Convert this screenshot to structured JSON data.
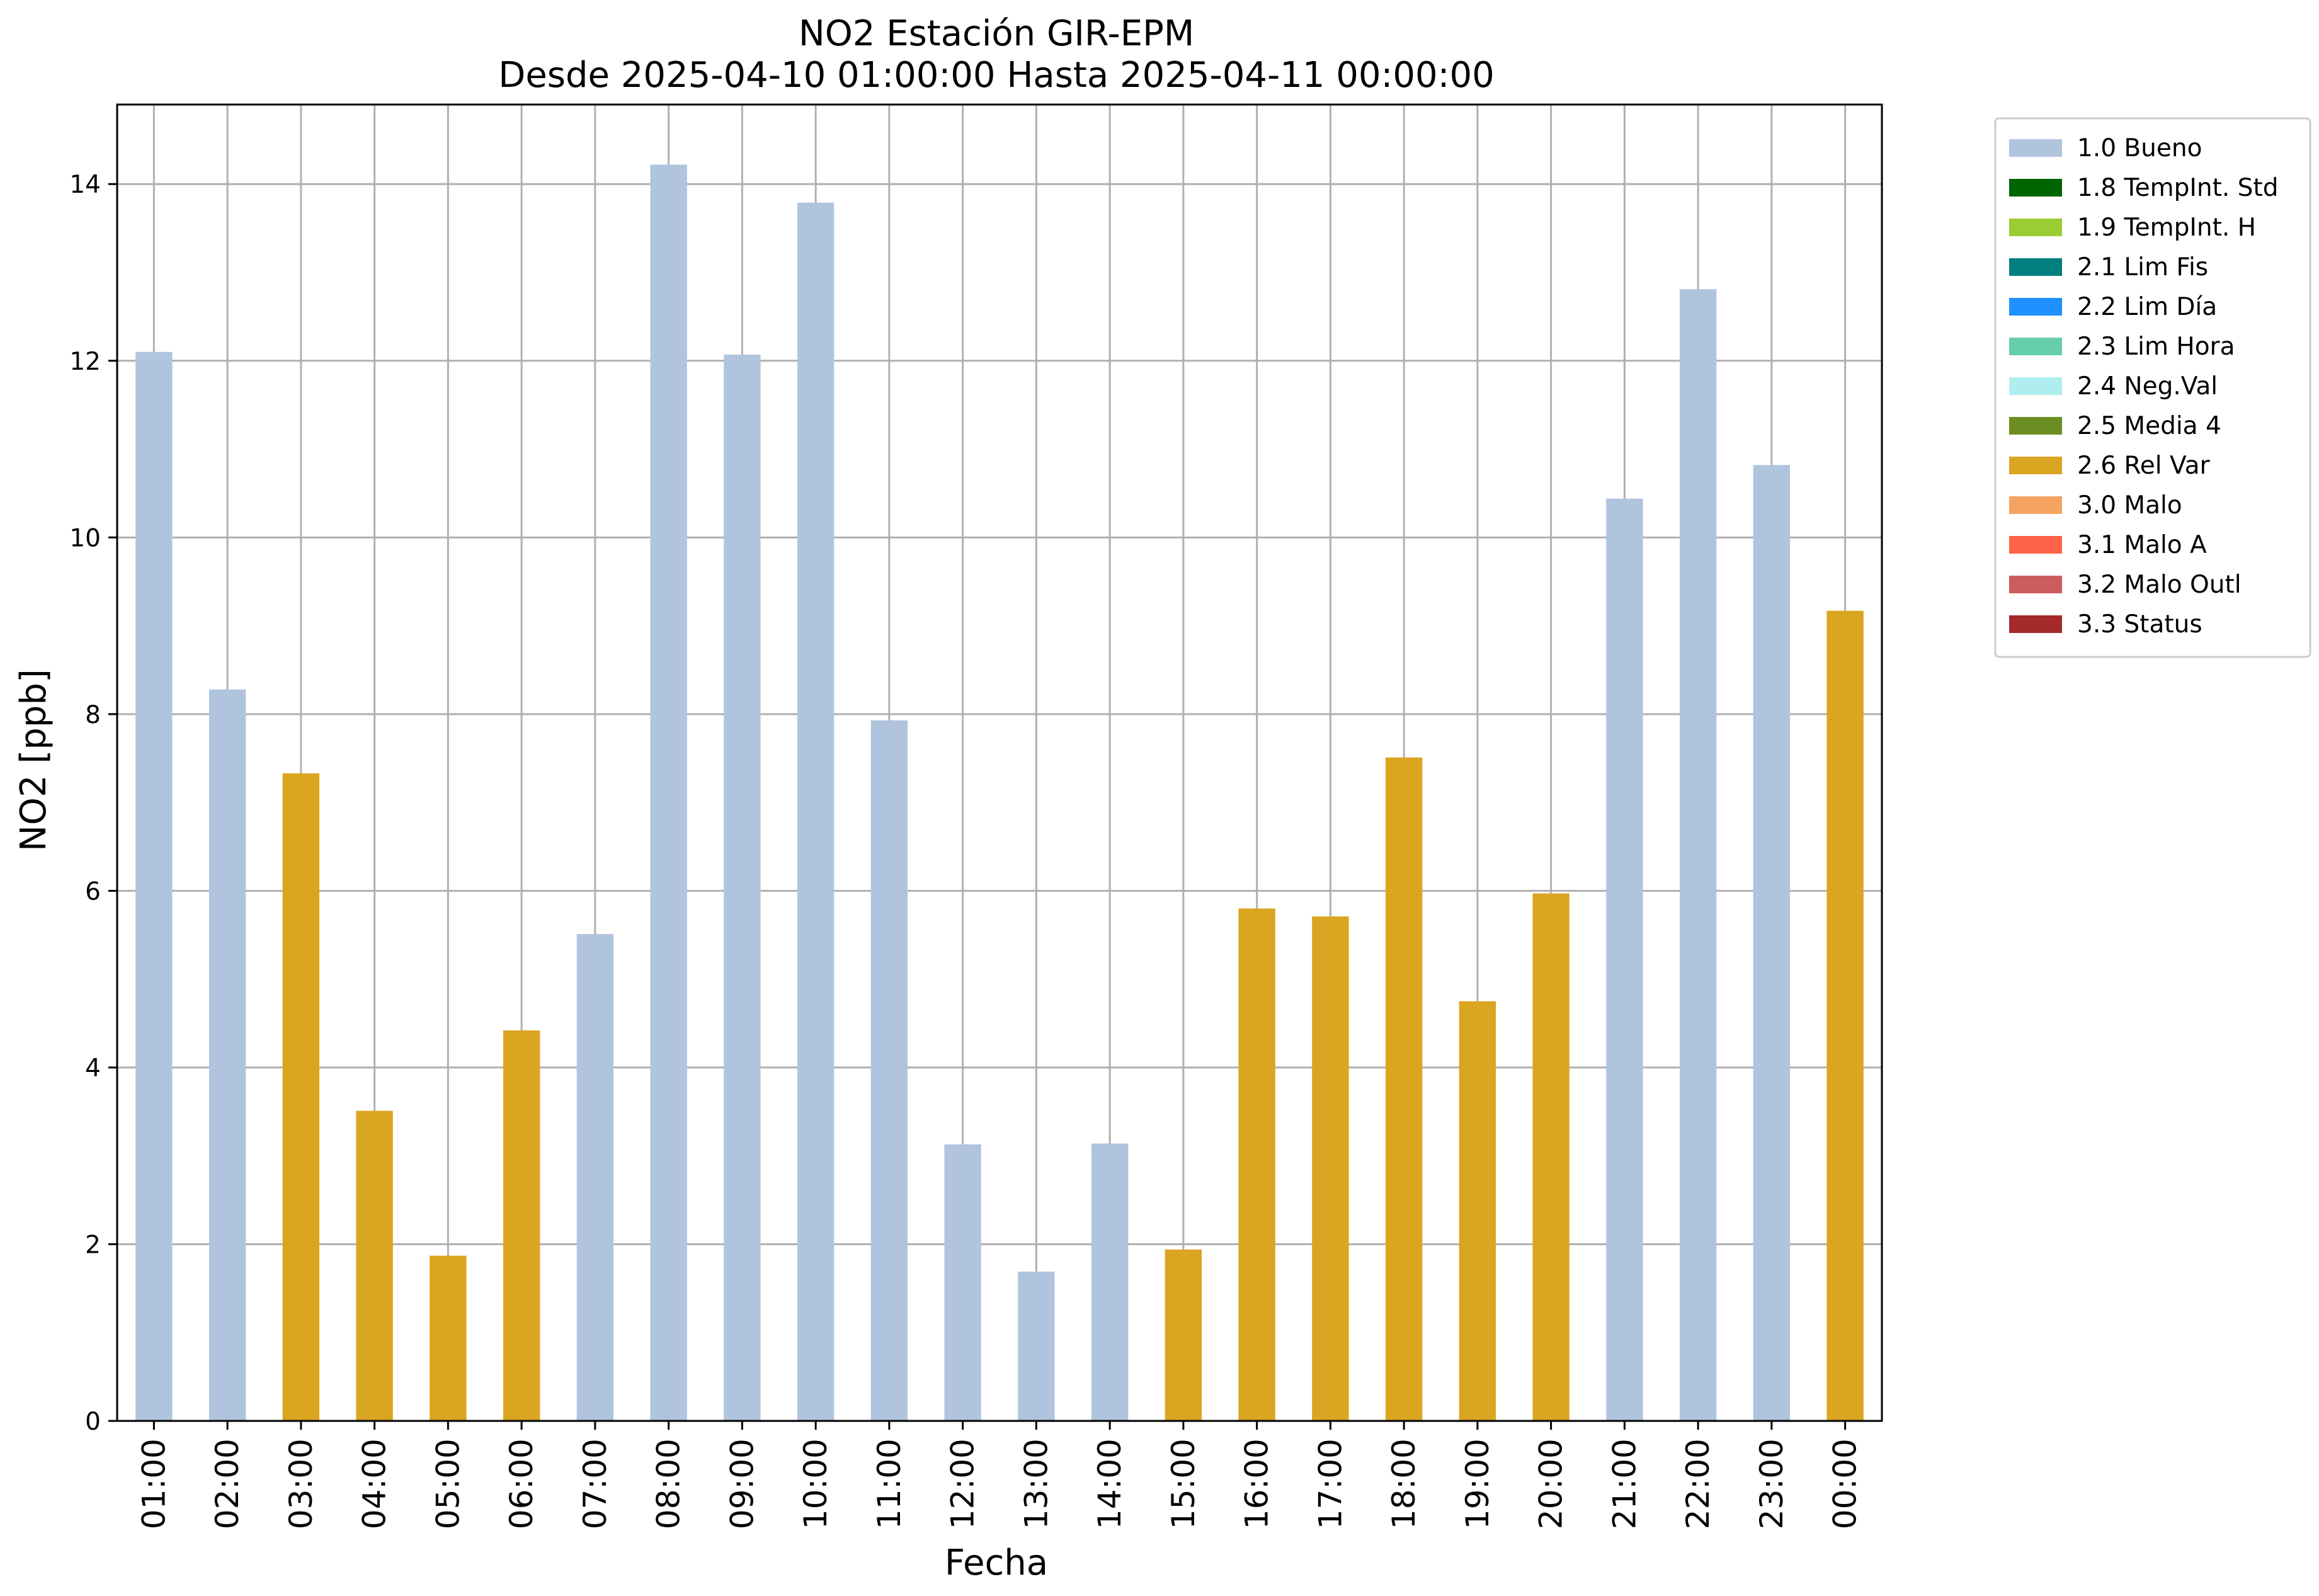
{
  "chart_data": {
    "type": "bar",
    "title": "NO2 Estación GIR-EPM",
    "subtitle": "Desde 2025-04-10 01:00:00 Hasta 2025-04-11 00:00:00",
    "xlabel": "Fecha",
    "ylabel": "NO2 [ppb]",
    "ylim": [
      0,
      14.9
    ],
    "yticks": [
      "0",
      "2",
      "4",
      "6",
      "8",
      "10",
      "12",
      "14"
    ],
    "grid": true,
    "legend_position": "outside-top-right",
    "categories": [
      "01:00",
      "02:00",
      "03:00",
      "04:00",
      "05:00",
      "06:00",
      "07:00",
      "08:00",
      "09:00",
      "10:00",
      "11:00",
      "12:00",
      "13:00",
      "14:00",
      "15:00",
      "16:00",
      "17:00",
      "18:00",
      "19:00",
      "20:00",
      "21:00",
      "22:00",
      "23:00",
      "00:00"
    ],
    "values": [
      12.1,
      8.28,
      7.33,
      3.51,
      1.87,
      4.42,
      5.51,
      14.22,
      12.07,
      13.79,
      7.93,
      3.13,
      1.69,
      3.14,
      1.94,
      5.8,
      5.71,
      7.51,
      4.75,
      5.97,
      10.44,
      12.81,
      10.82,
      9.17
    ],
    "flags": [
      "1.0",
      "1.0",
      "2.6",
      "2.6",
      "2.6",
      "2.6",
      "1.0",
      "1.0",
      "1.0",
      "1.0",
      "1.0",
      "1.0",
      "1.0",
      "1.0",
      "2.6",
      "2.6",
      "2.6",
      "2.6",
      "2.6",
      "2.6",
      "1.0",
      "1.0",
      "1.0",
      "2.6"
    ],
    "legend": [
      {
        "code": "1.0",
        "label": "1.0 Bueno",
        "color": "#b0c4de"
      },
      {
        "code": "1.8",
        "label": "1.8 TempInt. Std",
        "color": "#006400"
      },
      {
        "code": "1.9",
        "label": "1.9 TempInt. H",
        "color": "#9acd32"
      },
      {
        "code": "2.1",
        "label": "2.1 Lim Fis",
        "color": "#008080"
      },
      {
        "code": "2.2",
        "label": "2.2 Lim Día",
        "color": "#1e90ff"
      },
      {
        "code": "2.3",
        "label": "2.3 Lim Hora",
        "color": "#66cdaa"
      },
      {
        "code": "2.4",
        "label": "2.4 Neg.Val",
        "color": "#afeeee"
      },
      {
        "code": "2.5",
        "label": "2.5 Media 4",
        "color": "#6b8e23"
      },
      {
        "code": "2.6",
        "label": "2.6 Rel Var",
        "color": "#daa520"
      },
      {
        "code": "3.0",
        "label": "3.0 Malo",
        "color": "#f4a460"
      },
      {
        "code": "3.1",
        "label": "3.1 Malo A",
        "color": "#ff6347"
      },
      {
        "code": "3.2",
        "label": "3.2 Malo Outl",
        "color": "#cd5c5c"
      },
      {
        "code": "3.3",
        "label": "3.3 Status",
        "color": "#a52a2a"
      }
    ]
  }
}
